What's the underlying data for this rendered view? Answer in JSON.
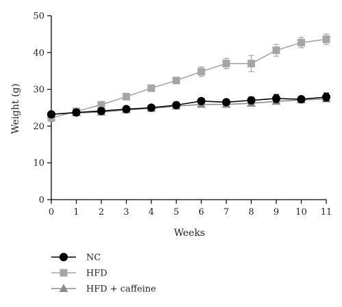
{
  "chart_data": {
    "type": "line",
    "title": "",
    "xlabel": "Weeks",
    "ylabel": "Weight (g)",
    "x": [
      0,
      1,
      2,
      3,
      4,
      5,
      6,
      7,
      8,
      9,
      10,
      11
    ],
    "xlim": [
      0,
      11
    ],
    "ylim": [
      0,
      50
    ],
    "x_ticks": [
      "0",
      "1",
      "2",
      "3",
      "4",
      "5",
      "6",
      "7",
      "8",
      "9",
      "10",
      "11"
    ],
    "y_ticks": [
      "0",
      "10",
      "20",
      "30",
      "40",
      "50"
    ],
    "grid": false,
    "legend_position": "bottom-left",
    "series": [
      {
        "name": "NC",
        "marker": "circle",
        "color": "#000000",
        "values": [
          23.2,
          23.7,
          24.1,
          24.6,
          25.0,
          25.7,
          26.8,
          26.5,
          27.0,
          27.5,
          27.3,
          27.9
        ],
        "errors": [
          0.5,
          0.5,
          0.5,
          0.6,
          0.6,
          0.7,
          0.7,
          0.7,
          0.9,
          1.1,
          0.8,
          1.1
        ]
      },
      {
        "name": "HFD",
        "marker": "square",
        "color": "#a6a6a6",
        "values": [
          22.2,
          24.0,
          25.8,
          28.0,
          30.3,
          32.4,
          34.8,
          37.0,
          37.0,
          40.6,
          42.7,
          43.6
        ],
        "errors": [
          0.6,
          0.6,
          0.6,
          0.6,
          0.7,
          0.8,
          1.3,
          1.4,
          2.2,
          1.6,
          1.4,
          1.4
        ]
      },
      {
        "name": "HFD + caffeine",
        "marker": "triangle",
        "color": "#8c8c8c",
        "values": [
          23.2,
          23.6,
          23.8,
          24.4,
          24.8,
          25.4,
          25.9,
          25.9,
          26.2,
          26.7,
          27.1,
          27.4
        ],
        "errors": [
          0.4,
          0.4,
          0.4,
          0.5,
          0.5,
          0.5,
          0.5,
          0.5,
          0.5,
          0.5,
          0.5,
          0.6
        ]
      }
    ]
  }
}
